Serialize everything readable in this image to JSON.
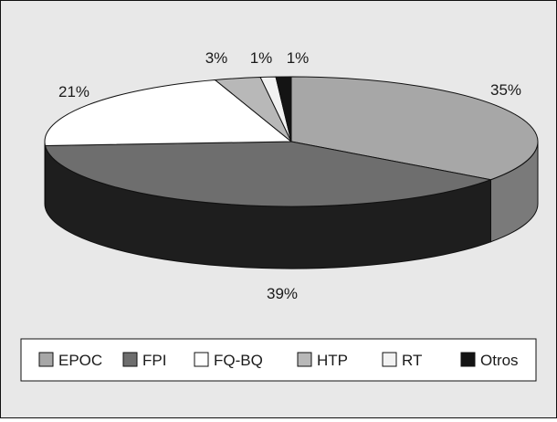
{
  "chart_data": {
    "type": "pie",
    "title": "",
    "three_d": true,
    "legend_position": "bottom",
    "series": [
      {
        "name": "EPOC",
        "value": 35,
        "label": "35%",
        "color": "#a7a7a7",
        "side_color": "#7a7a7a"
      },
      {
        "name": "FPI",
        "value": 39,
        "label": "39%",
        "color": "#6e6e6e",
        "side_color": "#1e1e1e"
      },
      {
        "name": "FQ-BQ",
        "value": 21,
        "label": "21%",
        "color": "#ffffff",
        "side_color": "#222222"
      },
      {
        "name": "HTP",
        "value": 3,
        "label": "3%",
        "color": "#b8b8b8",
        "side_color": "#8a8a8a"
      },
      {
        "name": "RT",
        "value": 1,
        "label": "1%",
        "color": "#f2f2f2",
        "side_color": "#cfcfcf"
      },
      {
        "name": "Otros",
        "value": 1,
        "label": "1%",
        "color": "#141414",
        "side_color": "#050505"
      }
    ]
  }
}
